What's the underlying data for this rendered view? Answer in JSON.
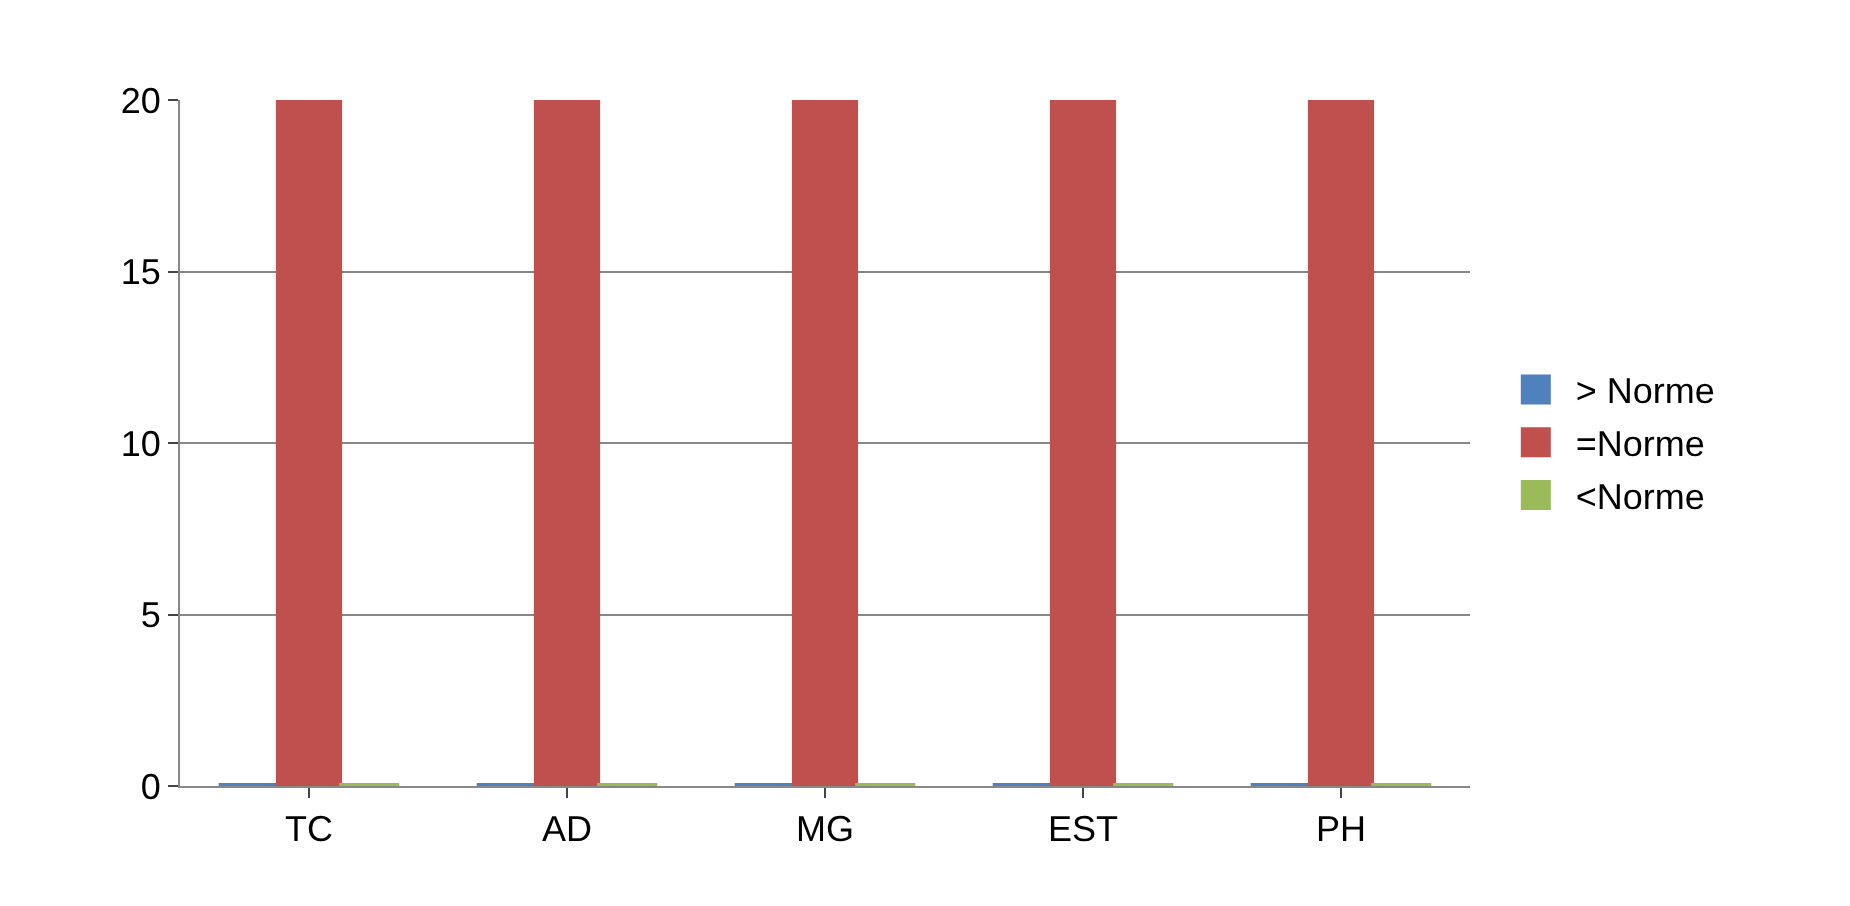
{
  "chart_data": {
    "type": "bar",
    "categories": [
      "TC",
      "AD",
      "MG",
      "EST",
      "PH"
    ],
    "series": [
      {
        "name": "> Norme",
        "color": "#4f81bd",
        "values": [
          0,
          0,
          0,
          0,
          0
        ]
      },
      {
        "name": "=Norme",
        "color": "#c0504d",
        "values": [
          20,
          20,
          20,
          20,
          20
        ]
      },
      {
        "name": "<Norme",
        "color": "#9bbb59",
        "values": [
          0,
          0,
          0,
          0,
          0
        ]
      }
    ],
    "ylim": [
      0,
      20
    ],
    "yticks": [
      0,
      5,
      10,
      15,
      20
    ],
    "grid": "y",
    "legend": "right"
  }
}
